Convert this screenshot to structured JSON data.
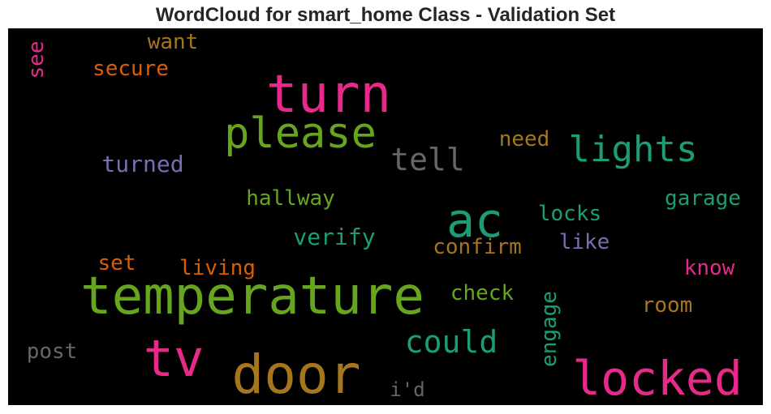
{
  "title": "WordCloud for smart_home Class - Validation Set",
  "chart_data": {
    "type": "wordcloud",
    "title": "WordCloud for smart_home Class - Validation Set",
    "background": "#000000",
    "colormap": [
      "#1b9e77",
      "#d95f02",
      "#7570b3",
      "#e7298a",
      "#66a61e",
      "#a6761d",
      "#666666"
    ],
    "words": [
      {
        "text": "temperature",
        "color": "#66a61e",
        "weight": 1.0
      },
      {
        "text": "door",
        "color": "#a6761d",
        "weight": 0.95
      },
      {
        "text": "turn",
        "color": "#e7298a",
        "weight": 0.93
      },
      {
        "text": "locked",
        "color": "#e7298a",
        "weight": 0.85
      },
      {
        "text": "tv",
        "color": "#e7298a",
        "weight": 0.82
      },
      {
        "text": "ac",
        "color": "#1b9e77",
        "weight": 0.8
      },
      {
        "text": "please",
        "color": "#66a61e",
        "weight": 0.75
      },
      {
        "text": "lights",
        "color": "#1b9e77",
        "weight": 0.7
      },
      {
        "text": "tell",
        "color": "#666666",
        "weight": 0.6
      },
      {
        "text": "could",
        "color": "#1b9e77",
        "weight": 0.6
      },
      {
        "text": "engage",
        "color": "#1b9e77",
        "weight": 0.45
      },
      {
        "text": "hallway",
        "color": "#66a61e",
        "weight": 0.45
      },
      {
        "text": "garage",
        "color": "#1b9e77",
        "weight": 0.45
      },
      {
        "text": "turned",
        "color": "#7570b3",
        "weight": 0.45
      },
      {
        "text": "verify",
        "color": "#1b9e77",
        "weight": 0.45
      },
      {
        "text": "confirm",
        "color": "#a6761d",
        "weight": 0.45
      },
      {
        "text": "living",
        "color": "#d95f02",
        "weight": 0.45
      },
      {
        "text": "locks",
        "color": "#1b9e77",
        "weight": 0.45
      },
      {
        "text": "need",
        "color": "#a6761d",
        "weight": 0.45
      },
      {
        "text": "check",
        "color": "#66a61e",
        "weight": 0.45
      },
      {
        "text": "post",
        "color": "#666666",
        "weight": 0.45
      },
      {
        "text": "know",
        "color": "#e7298a",
        "weight": 0.45
      },
      {
        "text": "room",
        "color": "#a6761d",
        "weight": 0.45
      },
      {
        "text": "like",
        "color": "#7570b3",
        "weight": 0.45
      },
      {
        "text": "secure",
        "color": "#d95f02",
        "weight": 0.45
      },
      {
        "text": "want",
        "color": "#a6761d",
        "weight": 0.45
      },
      {
        "text": "set",
        "color": "#d95f02",
        "weight": 0.45
      },
      {
        "text": "i'd",
        "color": "#666666",
        "weight": 0.4
      },
      {
        "text": "see",
        "color": "#e7298a",
        "weight": 0.4
      }
    ]
  }
}
